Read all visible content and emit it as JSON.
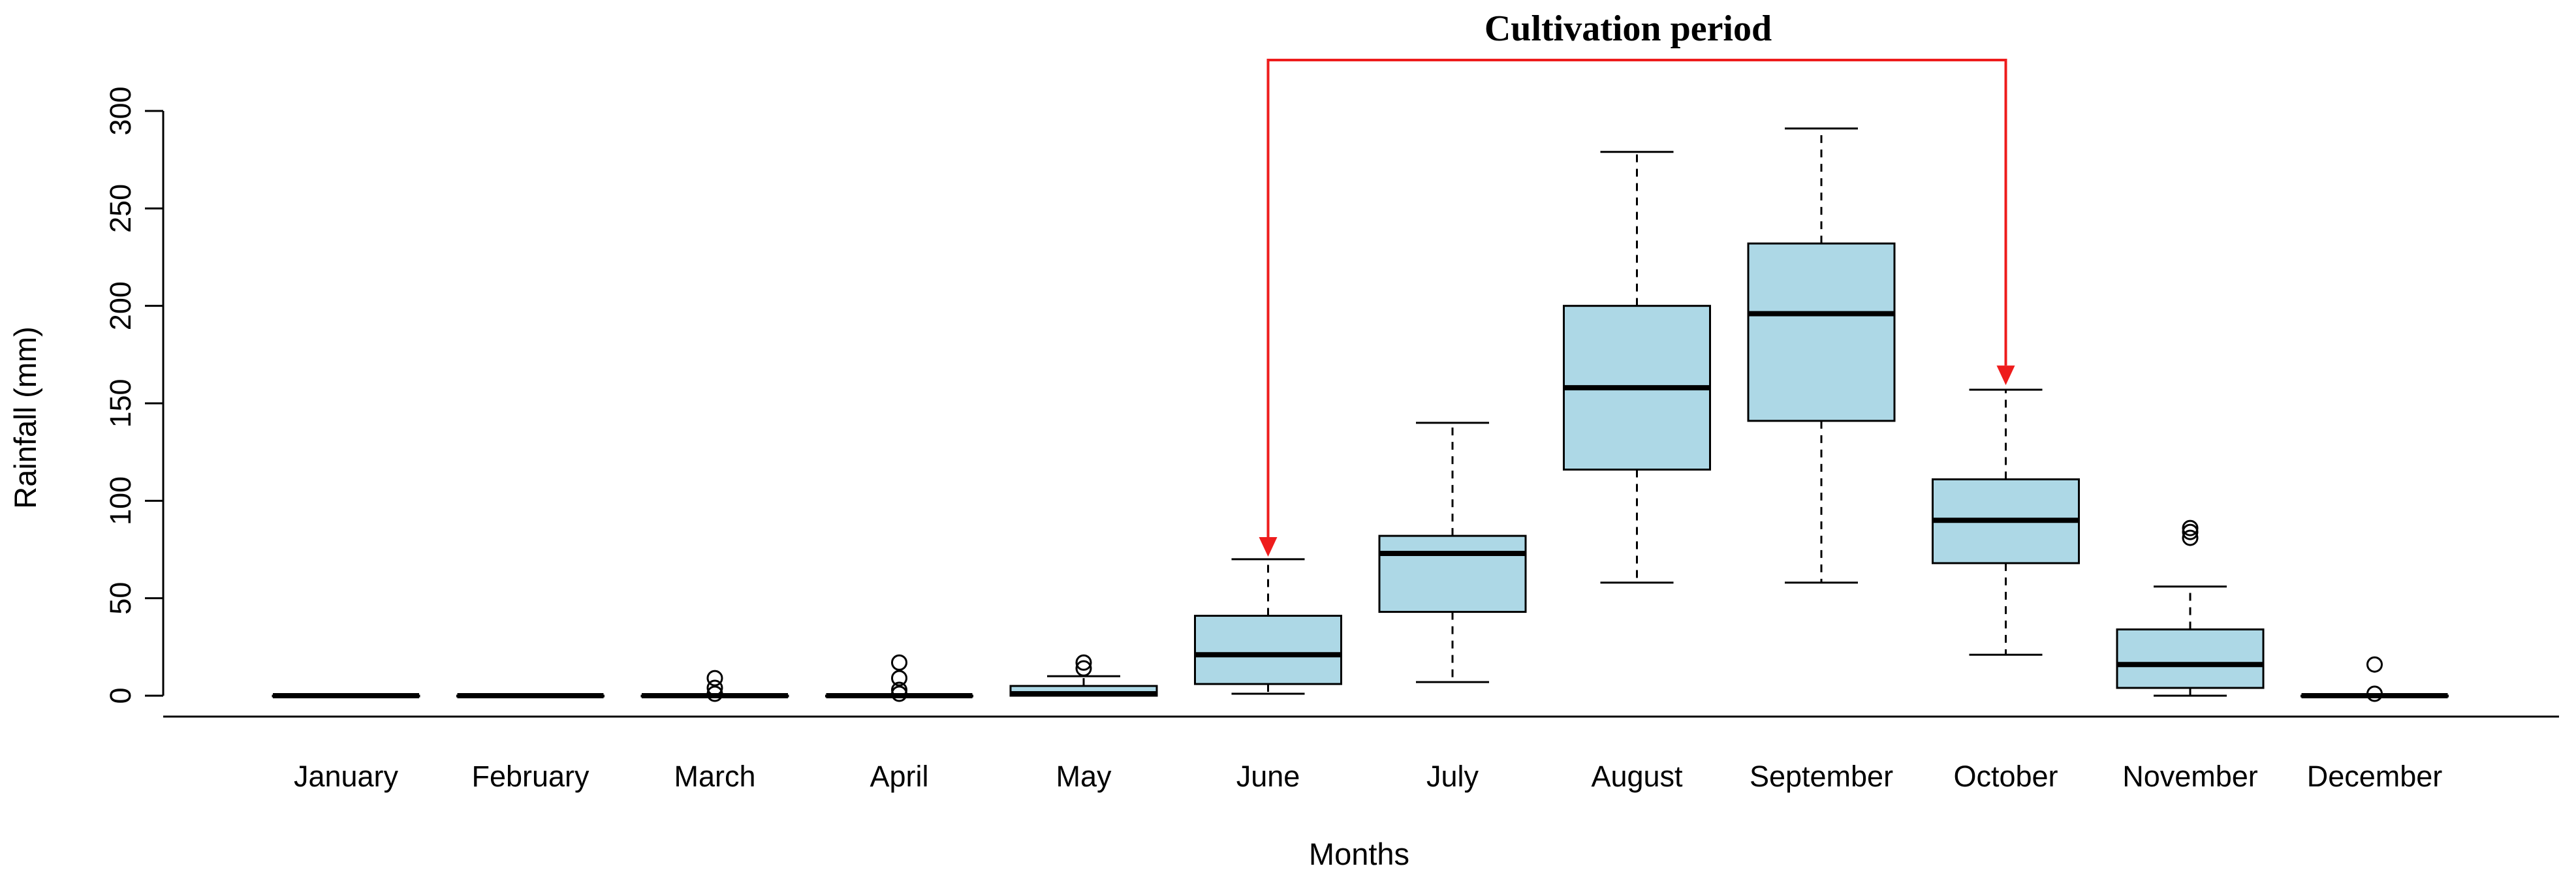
{
  "chart_data": {
    "type": "boxplot",
    "title": "",
    "xlabel": "Months",
    "ylabel": "Rainfall (mm)",
    "ylim": [
      0,
      300
    ],
    "yticks": [
      0,
      50,
      100,
      150,
      200,
      250,
      300
    ],
    "box_color": "#add8e6",
    "categories": [
      "January",
      "February",
      "March",
      "April",
      "May",
      "June",
      "July",
      "August",
      "September",
      "October",
      "November",
      "December"
    ],
    "boxes": [
      {
        "name": "January",
        "min": 0,
        "q1": 0,
        "median": 0,
        "q3": 0,
        "max": 0,
        "outliers": []
      },
      {
        "name": "February",
        "min": 0,
        "q1": 0,
        "median": 0,
        "q3": 0,
        "max": 0,
        "outliers": []
      },
      {
        "name": "March",
        "min": 0,
        "q1": 0,
        "median": 0,
        "q3": 0,
        "max": 0,
        "outliers": [
          1,
          4,
          9
        ]
      },
      {
        "name": "April",
        "min": 0,
        "q1": 0,
        "median": 0,
        "q3": 0,
        "max": 0,
        "outliers": [
          1,
          3,
          9,
          17
        ]
      },
      {
        "name": "May",
        "min": 0,
        "q1": 0,
        "median": 1,
        "q3": 5,
        "max": 10,
        "outliers": [
          14,
          17
        ]
      },
      {
        "name": "June",
        "min": 1,
        "q1": 6,
        "median": 21,
        "q3": 41,
        "max": 70,
        "outliers": []
      },
      {
        "name": "July",
        "min": 7,
        "q1": 43,
        "median": 73,
        "q3": 82,
        "max": 140,
        "outliers": []
      },
      {
        "name": "August",
        "min": 58,
        "q1": 116,
        "median": 158,
        "q3": 200,
        "max": 279,
        "outliers": []
      },
      {
        "name": "September",
        "min": 58,
        "q1": 141,
        "median": 196,
        "q3": 232,
        "max": 291,
        "outliers": []
      },
      {
        "name": "October",
        "min": 21,
        "q1": 68,
        "median": 90,
        "q3": 111,
        "max": 157,
        "outliers": []
      },
      {
        "name": "November",
        "min": 0,
        "q1": 4,
        "median": 16,
        "q3": 34,
        "max": 56,
        "outliers": [
          81,
          84,
          86
        ]
      },
      {
        "name": "December",
        "min": 0,
        "q1": 0,
        "median": 0,
        "q3": 0,
        "max": 0,
        "outliers": [
          1,
          16
        ]
      }
    ],
    "annotation": {
      "text": "Cultivation period",
      "from": "June",
      "to": "October",
      "from_value": 72,
      "to_value": 160,
      "color": "#ee1c1c"
    }
  }
}
